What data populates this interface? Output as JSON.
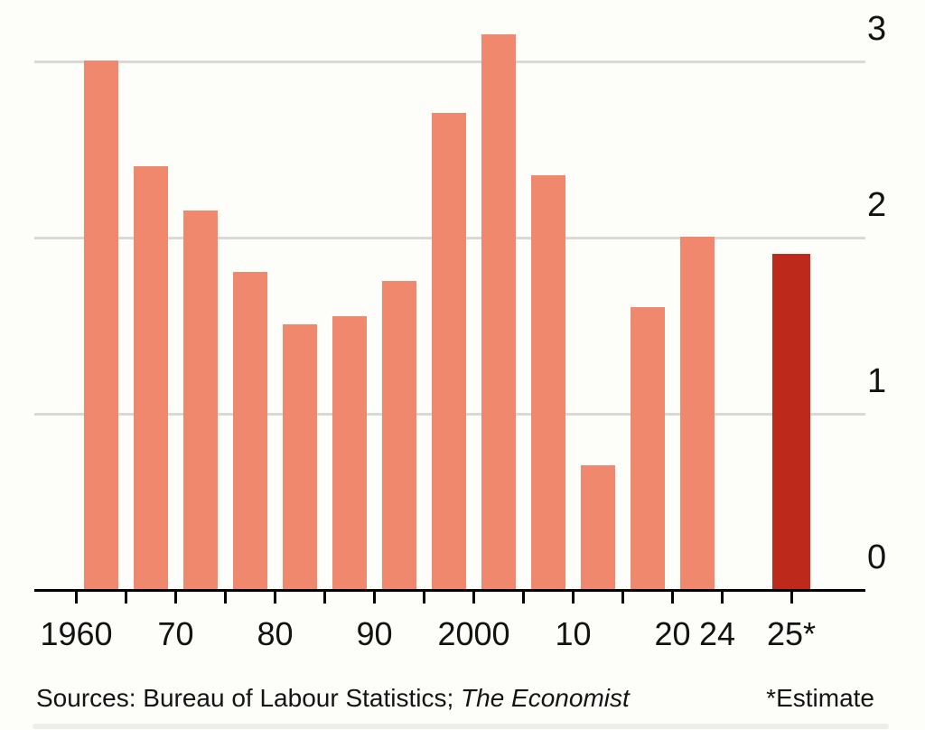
{
  "chart_data": {
    "type": "bar",
    "title": "",
    "categories": [
      "1960-64",
      "1965-69",
      "1970-74",
      "1975-79",
      "1980-84",
      "1985-89",
      "1990-94",
      "1995-99",
      "2000-04",
      "2005-09",
      "2010-14",
      "2015-19",
      "2020-24",
      "2025*"
    ],
    "values": [
      3.0,
      2.4,
      2.15,
      1.8,
      1.5,
      1.55,
      1.75,
      2.7,
      3.15,
      2.35,
      0.7,
      1.6,
      2.0,
      1.9
    ],
    "highlight_index": 13,
    "ylim": [
      0,
      3.3
    ],
    "y_ticks": [
      0,
      1,
      2,
      3
    ],
    "x_labels": [
      {
        "text": "1960",
        "year": 1960
      },
      {
        "text": "70",
        "year": 1970
      },
      {
        "text": "80",
        "year": 1980
      },
      {
        "text": "90",
        "year": 1990
      },
      {
        "text": "2000",
        "year": 2000
      },
      {
        "text": "10",
        "year": 2010
      },
      {
        "text": "20",
        "year": 2020
      },
      {
        "text": "24",
        "year": 2024.5
      },
      {
        "text": "25*",
        "estimate": true
      }
    ],
    "grid": true,
    "legend": "none",
    "colors": {
      "bar": "#f0886e",
      "highlight": "#bd2a1c",
      "gridline": "#d9d9d6",
      "axis": "#000000",
      "text": "#121212"
    }
  },
  "footer": {
    "sources_prefix": "Sources: Bureau of Labour Statistics; ",
    "sources_italic": "The Economist",
    "estimate_note": "*Estimate"
  }
}
